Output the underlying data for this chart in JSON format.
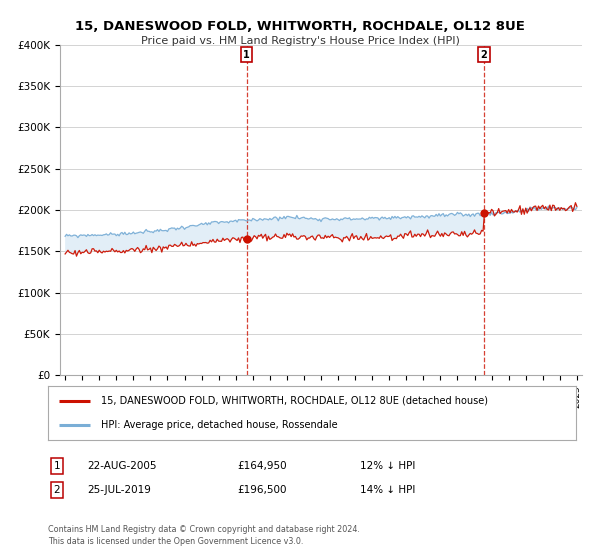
{
  "title": "15, DANESWOOD FOLD, WHITWORTH, ROCHDALE, OL12 8UE",
  "subtitle": "Price paid vs. HM Land Registry's House Price Index (HPI)",
  "ylabel_ticks": [
    "£0",
    "£50K",
    "£100K",
    "£150K",
    "£200K",
    "£250K",
    "£300K",
    "£350K",
    "£400K"
  ],
  "ylim": [
    0,
    400000
  ],
  "xlim_start": 1995,
  "xlim_end": 2025,
  "sale1": {
    "date_num": 2005.64,
    "price": 164950,
    "label": "1",
    "pct": "12% ↓ HPI",
    "date_str": "22-AUG-2005"
  },
  "sale2": {
    "date_num": 2019.56,
    "price": 196500,
    "label": "2",
    "pct": "14% ↓ HPI",
    "date_str": "25-JUL-2019"
  },
  "hpi_color": "#7aaed6",
  "hpi_fill_color": "#d6e8f5",
  "price_color": "#cc1100",
  "dashed_line_color": "#cc1100",
  "legend_label1": "15, DANESWOOD FOLD, WHITWORTH, ROCHDALE, OL12 8UE (detached house)",
  "legend_label2": "HPI: Average price, detached house, Rossendale",
  "footer": "Contains HM Land Registry data © Crown copyright and database right 2024.\nThis data is licensed under the Open Government Licence v3.0.",
  "background_color": "#ffffff",
  "grid_color": "#cccccc"
}
